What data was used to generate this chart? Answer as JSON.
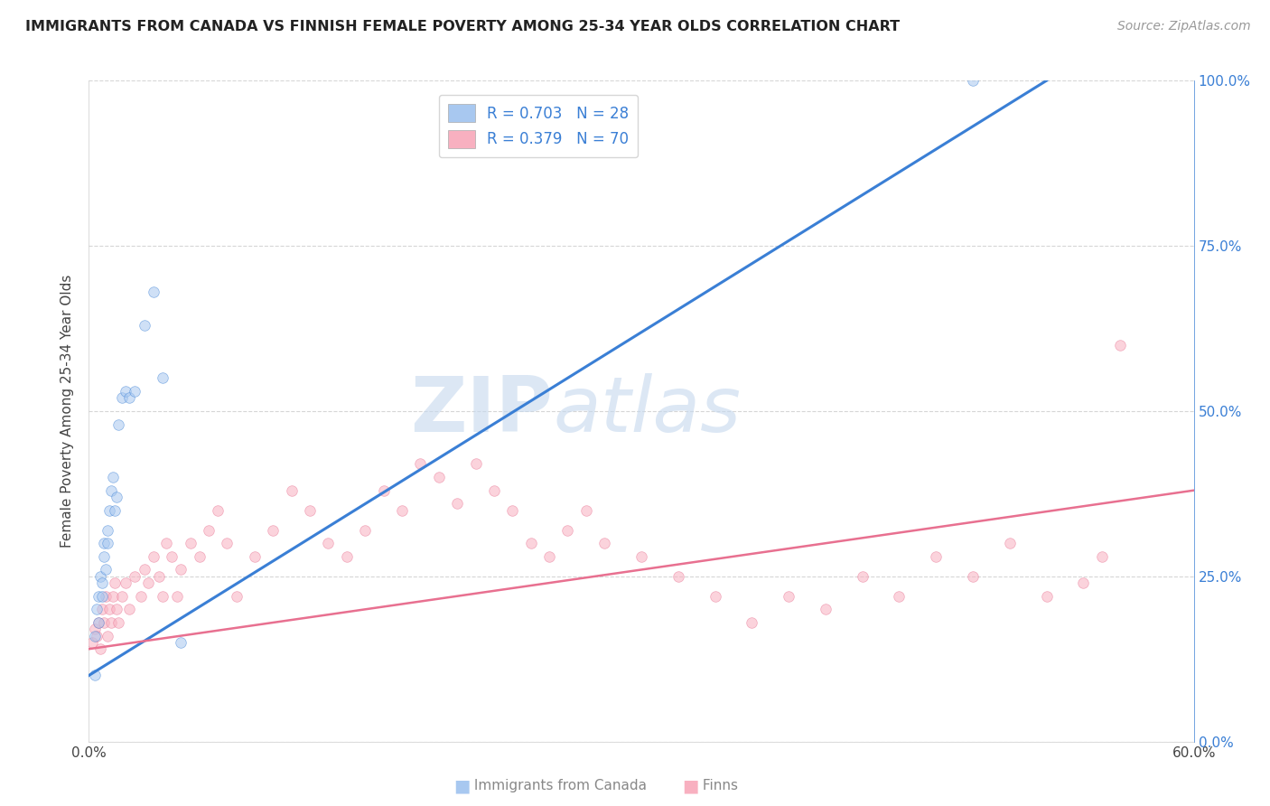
{
  "title": "IMMIGRANTS FROM CANADA VS FINNISH FEMALE POVERTY AMONG 25-34 YEAR OLDS CORRELATION CHART",
  "source": "Source: ZipAtlas.com",
  "ylabel": "Female Poverty Among 25-34 Year Olds",
  "xlim": [
    0.0,
    0.6
  ],
  "ylim": [
    0.0,
    1.0
  ],
  "right_yticks": [
    0.0,
    0.25,
    0.5,
    0.75,
    1.0
  ],
  "right_yticklabels": [
    "0.0%",
    "25.0%",
    "50.0%",
    "75.0%",
    "100.0%"
  ],
  "legend_r1": "R = 0.703",
  "legend_n1": "N = 28",
  "legend_r2": "R = 0.379",
  "legend_n2": "N = 70",
  "blue_color": "#a8c8f0",
  "pink_color": "#f8b0c0",
  "blue_line_color": "#3a7fd5",
  "pink_line_color": "#e87090",
  "background_color": "#ffffff",
  "grid_color": "#cccccc",
  "blue_scatter_x": [
    0.003,
    0.004,
    0.005,
    0.005,
    0.006,
    0.007,
    0.007,
    0.008,
    0.008,
    0.009,
    0.01,
    0.01,
    0.011,
    0.012,
    0.013,
    0.014,
    0.015,
    0.016,
    0.018,
    0.02,
    0.022,
    0.025,
    0.03,
    0.035,
    0.04,
    0.05,
    0.48,
    0.003
  ],
  "blue_scatter_y": [
    0.16,
    0.2,
    0.18,
    0.22,
    0.25,
    0.22,
    0.24,
    0.28,
    0.3,
    0.26,
    0.3,
    0.32,
    0.35,
    0.38,
    0.4,
    0.35,
    0.37,
    0.48,
    0.52,
    0.53,
    0.52,
    0.53,
    0.63,
    0.68,
    0.55,
    0.15,
    1.0,
    0.1
  ],
  "pink_scatter_x": [
    0.002,
    0.003,
    0.004,
    0.005,
    0.006,
    0.007,
    0.008,
    0.009,
    0.01,
    0.011,
    0.012,
    0.013,
    0.014,
    0.015,
    0.016,
    0.018,
    0.02,
    0.022,
    0.025,
    0.028,
    0.03,
    0.032,
    0.035,
    0.038,
    0.04,
    0.042,
    0.045,
    0.048,
    0.05,
    0.055,
    0.06,
    0.065,
    0.07,
    0.075,
    0.08,
    0.09,
    0.1,
    0.11,
    0.12,
    0.13,
    0.14,
    0.15,
    0.16,
    0.17,
    0.18,
    0.19,
    0.2,
    0.21,
    0.22,
    0.23,
    0.24,
    0.25,
    0.26,
    0.27,
    0.28,
    0.3,
    0.32,
    0.34,
    0.36,
    0.38,
    0.4,
    0.42,
    0.44,
    0.46,
    0.48,
    0.5,
    0.52,
    0.54,
    0.55,
    0.56
  ],
  "pink_scatter_y": [
    0.15,
    0.17,
    0.16,
    0.18,
    0.14,
    0.2,
    0.18,
    0.22,
    0.16,
    0.2,
    0.18,
    0.22,
    0.24,
    0.2,
    0.18,
    0.22,
    0.24,
    0.2,
    0.25,
    0.22,
    0.26,
    0.24,
    0.28,
    0.25,
    0.22,
    0.3,
    0.28,
    0.22,
    0.26,
    0.3,
    0.28,
    0.32,
    0.35,
    0.3,
    0.22,
    0.28,
    0.32,
    0.38,
    0.35,
    0.3,
    0.28,
    0.32,
    0.38,
    0.35,
    0.42,
    0.4,
    0.36,
    0.42,
    0.38,
    0.35,
    0.3,
    0.28,
    0.32,
    0.35,
    0.3,
    0.28,
    0.25,
    0.22,
    0.18,
    0.22,
    0.2,
    0.25,
    0.22,
    0.28,
    0.25,
    0.3,
    0.22,
    0.24,
    0.28,
    0.6
  ],
  "blue_trend_x": [
    0.0,
    0.52
  ],
  "blue_trend_y": [
    0.1,
    1.0
  ],
  "pink_trend_x": [
    0.0,
    0.6
  ],
  "pink_trend_y": [
    0.14,
    0.38
  ],
  "watermark_zip": "ZIP",
  "watermark_atlas": "atlas",
  "marker_size": 70,
  "marker_alpha": 0.55
}
